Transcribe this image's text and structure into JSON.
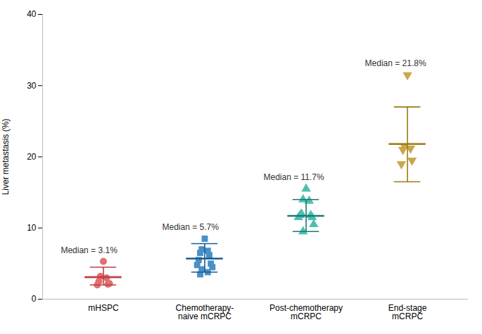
{
  "chart_data": {
    "type": "scatter",
    "categories": [
      "mHSPC",
      "Chemotherapy-\nnaive mCRPC",
      "Post-chemotherapy\nmCRPC",
      "End-stage\nmCRPC"
    ],
    "colors": [
      "#e07070",
      "#4a90c4",
      "#4dbfb0",
      "#c8a84b"
    ],
    "error_colors": [
      "#c04040",
      "#1a5c9a",
      "#1a7a70",
      "#9a7a10"
    ],
    "markers": [
      "circle",
      "square",
      "triangle-up",
      "triangle-down"
    ],
    "values": [
      [
        5.3,
        3.2,
        3.0,
        2.5,
        2.1,
        2.0,
        2.2
      ],
      [
        8.5,
        7.0,
        6.8,
        6.5,
        6.2,
        5.5,
        5.0,
        4.8,
        4.5,
        4.2,
        3.8,
        3.5
      ],
      [
        15.5,
        14.0,
        13.8,
        12.0,
        11.8,
        11.8,
        11.5,
        11.5,
        10.5,
        9.5
      ],
      [
        31.5,
        21.5,
        21.2,
        21.0,
        19.5,
        19.0
      ]
    ],
    "medians": [
      3.1,
      5.7,
      11.7,
      21.8
    ],
    "error_low": [
      2.0,
      3.8,
      9.5,
      16.5
    ],
    "error_high": [
      4.5,
      7.8,
      14.0,
      27.0
    ],
    "annotations": [
      "Median = 3.1%",
      "Median = 5.7%",
      "Median = 11.7%",
      "Median = 21.8%"
    ],
    "ylabel": "Liver metastasis (%)",
    "ylim": [
      0,
      40
    ],
    "yticks": [
      0,
      10,
      20,
      30,
      40
    ],
    "grid": false
  }
}
